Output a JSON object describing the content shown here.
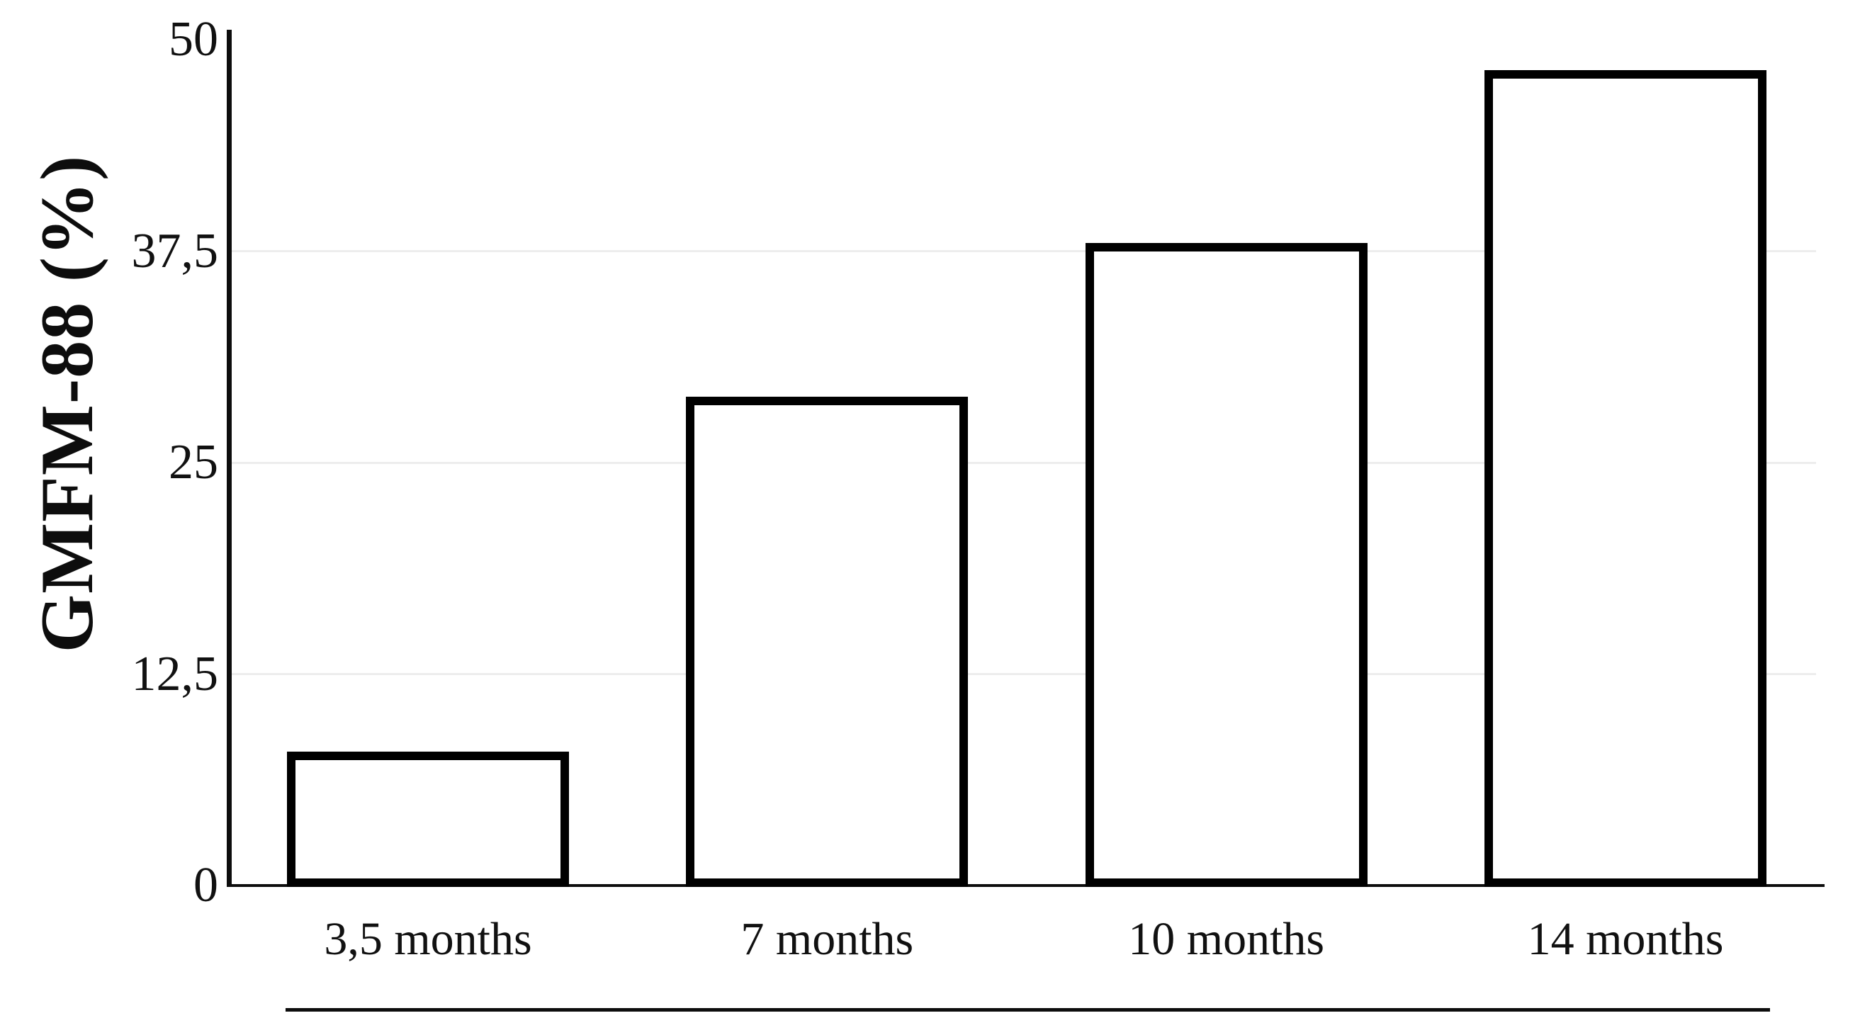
{
  "chart_data": {
    "type": "bar",
    "title": "",
    "xlabel": "",
    "ylabel": "GMFM-88 (%)",
    "categories": [
      "3,5 months",
      "7 months",
      "10 months",
      "14 months"
    ],
    "values": [
      7.9,
      28.9,
      38,
      48.2
    ],
    "ylim": [
      0,
      50
    ],
    "yticks": [
      0,
      12.5,
      25,
      37.5,
      50
    ],
    "ytick_labels": [
      "0",
      "12,5",
      "25",
      "37,5",
      "50"
    ],
    "gridline_values": [
      12.5,
      25,
      37.5
    ],
    "grid": "horizontal",
    "legend": "none",
    "bar_fill": "#ffffff",
    "bar_border_color": "#000000",
    "decimal_separator": ","
  },
  "colors": {
    "background": "#ffffff",
    "axis": "#0d0d0d",
    "gridline": "#ededed",
    "text": "#111111"
  }
}
